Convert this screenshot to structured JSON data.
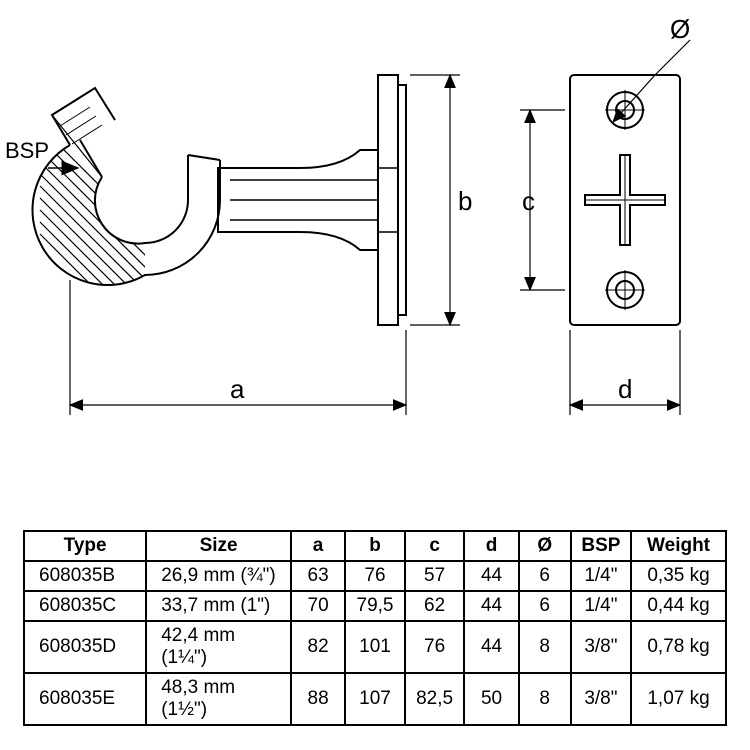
{
  "drawing": {
    "bsp_label": "BSP",
    "dim_a": "a",
    "dim_b": "b",
    "dim_c": "c",
    "dim_d": "d",
    "dim_diameter": "Ø"
  },
  "table": {
    "headers": {
      "type": "Type",
      "size": "Size",
      "a": "a",
      "b": "b",
      "c": "c",
      "d": "d",
      "diameter": "Ø",
      "bsp": "BSP",
      "weight": "Weight"
    },
    "rows": [
      {
        "type": "608035B",
        "size": "26,9 mm (¾\")",
        "a": "63",
        "b": "76",
        "c": "57",
        "d": "44",
        "diameter": "6",
        "bsp": "1/4\"",
        "weight": "0,35 kg"
      },
      {
        "type": "608035C",
        "size": "33,7 mm (1\")",
        "a": "70",
        "b": "79,5",
        "c": "62",
        "d": "44",
        "diameter": "6",
        "bsp": "1/4\"",
        "weight": "0,44 kg"
      },
      {
        "type": "608035D",
        "size": "42,4 mm (1¼\")",
        "a": "82",
        "b": "101",
        "c": "76",
        "d": "44",
        "diameter": "8",
        "bsp": "3/8\"",
        "weight": "0,78 kg"
      },
      {
        "type": "608035E",
        "size": "48,3 mm (1½\")",
        "a": "88",
        "b": "107",
        "c": "82,5",
        "d": "50",
        "diameter": "8",
        "bsp": "3/8\"",
        "weight": "1,07 kg"
      }
    ]
  },
  "style": {
    "stroke_color": "#000000",
    "stroke_width_main": 2,
    "stroke_width_thin": 1.2,
    "hatch_spacing": 7,
    "font_size_labels": 26,
    "font_size_small": 24,
    "table_font_size": 19,
    "background": "#ffffff"
  }
}
